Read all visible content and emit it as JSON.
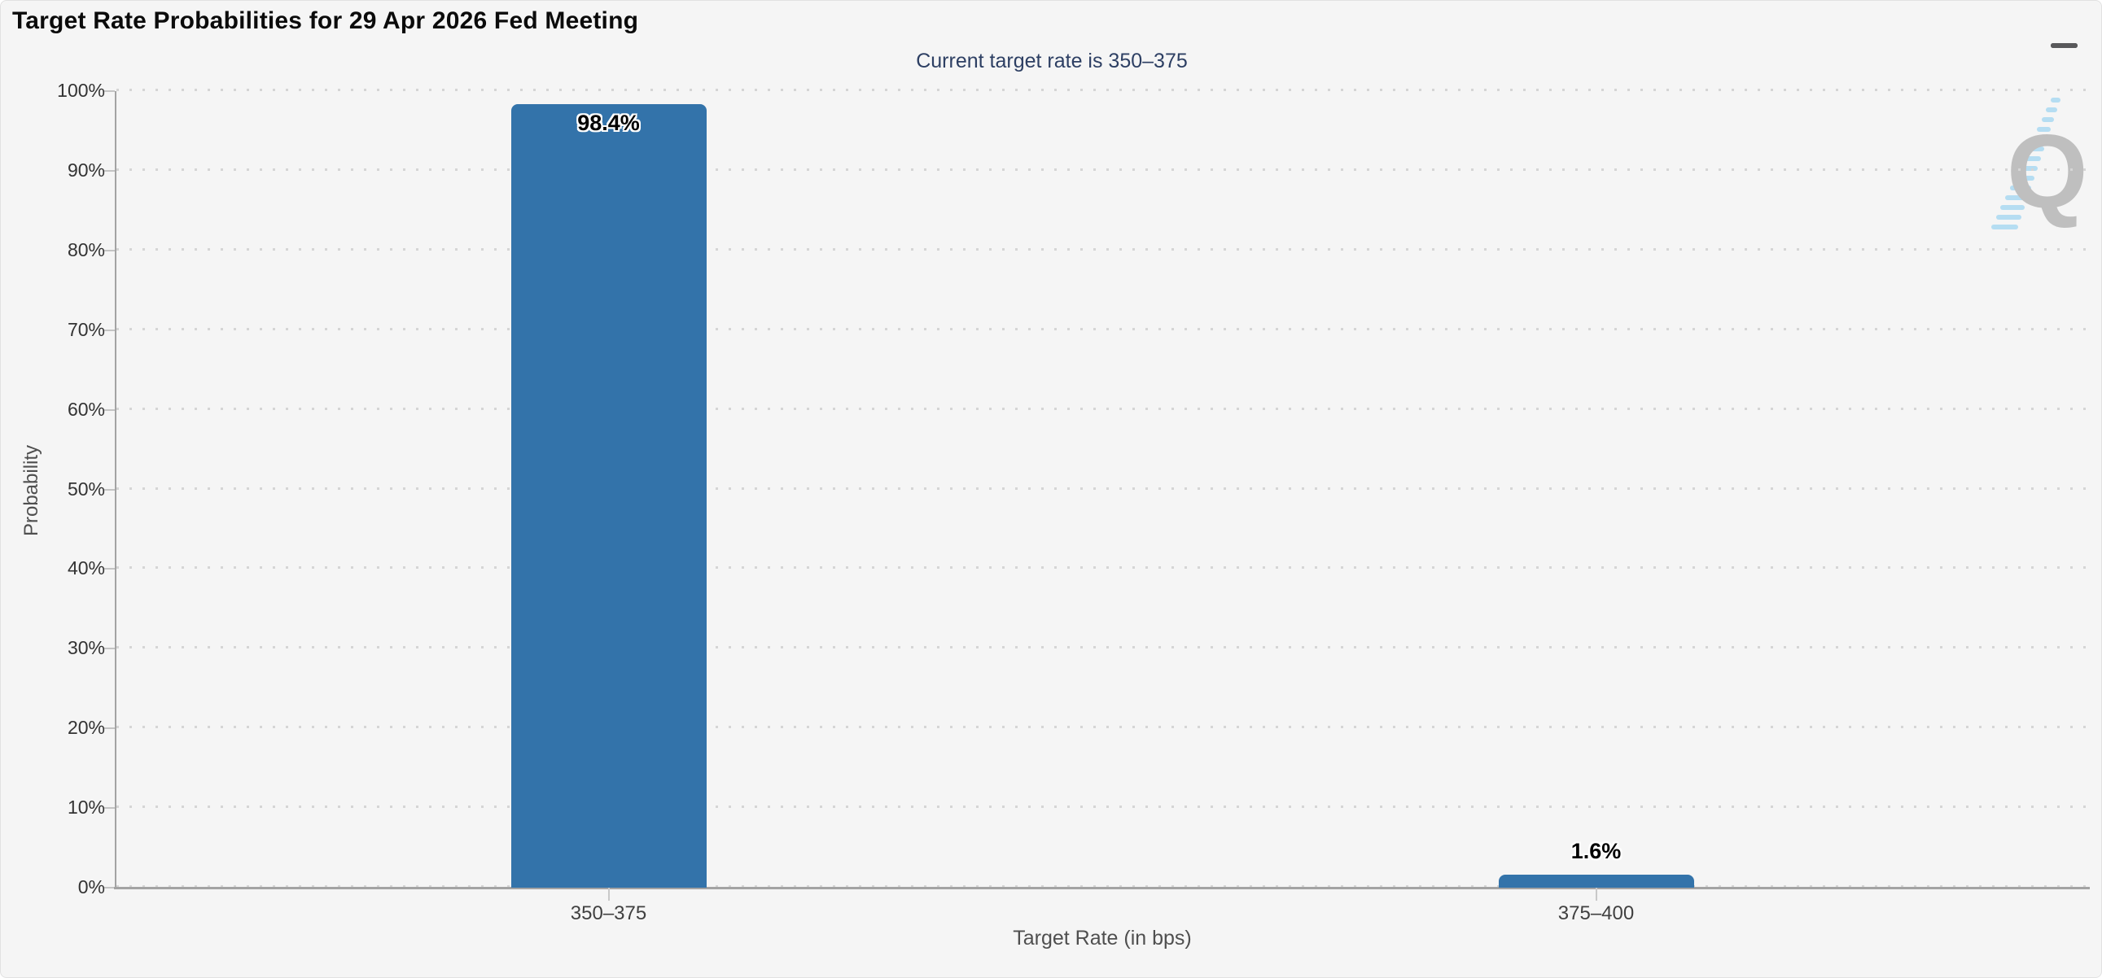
{
  "header": {
    "title": "Target Rate Probabilities for 29 Apr 2026 Fed Meeting",
    "subtitle": "Current target rate is 350–375"
  },
  "menu": {
    "icon": "hamburger-icon"
  },
  "watermark": {
    "letter": "Q",
    "icon": "quikstrike-logo"
  },
  "chart_data": {
    "type": "bar",
    "title": "Target Rate Probabilities for 29 Apr 2026 Fed Meeting",
    "subtitle": "Current target rate is 350–375",
    "categories": [
      "350–375",
      "375–400"
    ],
    "values": [
      98.4,
      1.6
    ],
    "value_labels": [
      "98.4%",
      "1.6%"
    ],
    "xlabel": "Target Rate (in bps)",
    "ylabel": "Probability",
    "ylim": [
      0,
      100
    ],
    "ytick_step": 10,
    "yticks": [
      "0%",
      "10%",
      "20%",
      "30%",
      "40%",
      "50%",
      "60%",
      "70%",
      "80%",
      "90%",
      "100%"
    ],
    "grid": "horizontal-dotted",
    "legend": "none",
    "bar_color": "#3373aa"
  }
}
